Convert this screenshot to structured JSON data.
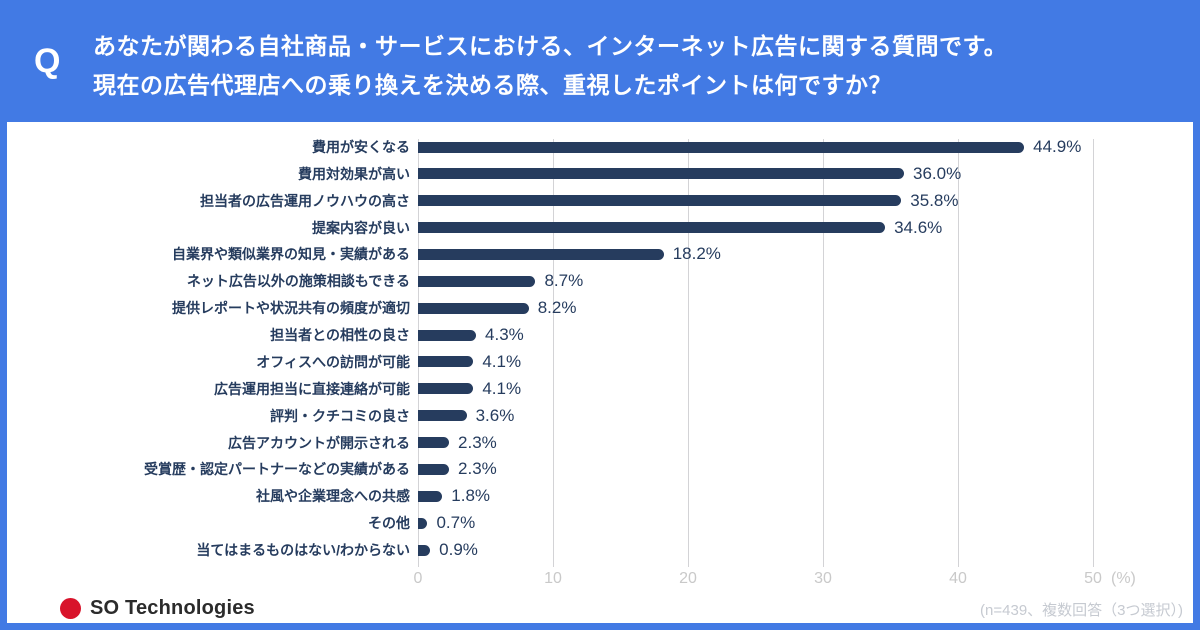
{
  "header": {
    "q_label": "Q",
    "question_line1": "あなたが関わる自社商品・サービスにおける、インターネット広告に関する質問です。",
    "question_line2": "現在の広告代理店への乗り換えを決める際、重視したポイントは何ですか？"
  },
  "chart_data": {
    "type": "bar",
    "orientation": "horizontal",
    "categories": [
      "費用が安くなる",
      "費用対効果が高い",
      "担当者の広告運用ノウハウの高さ",
      "提案内容が良い",
      "自業界や類似業界の知見・実績がある",
      "ネット広告以外の施策相談もできる",
      "提供レポートや状況共有の頻度が適切",
      "担当者との相性の良さ",
      "オフィスへの訪問が可能",
      "広告運用担当に直接連絡が可能",
      "評判・クチコミの良さ",
      "広告アカウントが開示される",
      "受賞歴・認定パートナーなどの実績がある",
      "社風や企業理念への共感",
      "その他",
      "当てはまるものはない/わからない"
    ],
    "values": [
      44.9,
      36.0,
      35.8,
      34.6,
      18.2,
      8.7,
      8.2,
      4.3,
      4.1,
      4.1,
      3.6,
      2.3,
      2.3,
      1.8,
      0.7,
      0.9
    ],
    "value_labels": [
      "44.9%",
      "36.0%",
      "35.8%",
      "34.6%",
      "18.2%",
      "8.7%",
      "8.2%",
      "4.3%",
      "4.1%",
      "4.1%",
      "3.6%",
      "2.3%",
      "2.3%",
      "1.8%",
      "0.7%",
      "0.9%"
    ],
    "xlim": [
      0,
      50
    ],
    "x_ticks": [
      "0",
      "10",
      "20",
      "30",
      "40",
      "50"
    ],
    "x_unit": "(%)",
    "grid": true,
    "legend": false,
    "bar_color": "#263C5E"
  },
  "footer": {
    "logo_text": "SO Technologies",
    "logo_dot_color": "#D8132B",
    "note": "(n=439、複数回答（3つ選択）)"
  },
  "colors": {
    "header_background": "#427AE4",
    "panel_background": "#ffffff",
    "bar": "#263C5E",
    "gridline": "#d3d3d6",
    "tick_text": "#c9c9c9",
    "note_text": "#c6cad1"
  }
}
